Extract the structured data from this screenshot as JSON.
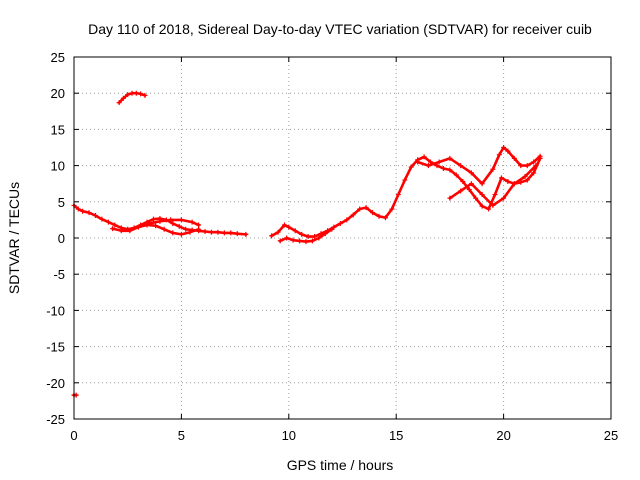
{
  "chart_data": {
    "type": "scatter",
    "title": "Day 110 of 2018, Sidereal Day-to-day VTEC variation (SDTVAR) for receiver cuib",
    "xlabel": "GPS time / hours",
    "ylabel": "SDTVAR / TECUs",
    "xlim": [
      0,
      25
    ],
    "ylim": [
      -25,
      25
    ],
    "xticks": [
      0,
      5,
      10,
      15,
      20,
      25
    ],
    "yticks": [
      -25,
      -20,
      -15,
      -10,
      -5,
      0,
      5,
      10,
      15,
      20,
      25
    ],
    "xtick_labels": [
      "0",
      "5",
      "10",
      "15",
      "20",
      "25"
    ],
    "ytick_labels": [
      "-25",
      "-20",
      "-15",
      "-10",
      "-5",
      "0",
      "5",
      "10",
      "15",
      "20",
      "25"
    ],
    "grid": true,
    "color": "#ff0000",
    "series": [
      {
        "name": "outlier",
        "x": [
          0.0,
          0.1
        ],
        "y": [
          -21.7,
          -21.7
        ]
      },
      {
        "name": "segment-a",
        "x": [
          0.0,
          0.2,
          0.4,
          0.7,
          1.0,
          1.3,
          1.6,
          1.9,
          2.2,
          2.5,
          2.8,
          3.1,
          3.4,
          3.7,
          4.0,
          4.3,
          4.6,
          4.9,
          5.2,
          5.5,
          5.8,
          6.1,
          6.4,
          6.7,
          7.0,
          7.3,
          7.6,
          8.0
        ],
        "y": [
          4.5,
          4.0,
          3.7,
          3.5,
          3.1,
          2.6,
          2.2,
          1.8,
          1.4,
          1.2,
          1.4,
          1.8,
          2.2,
          2.6,
          2.7,
          2.5,
          2.0,
          1.6,
          1.2,
          1.1,
          1.0,
          0.9,
          0.8,
          0.8,
          0.7,
          0.7,
          0.6,
          0.5
        ]
      },
      {
        "name": "segment-a-lower",
        "x": [
          1.8,
          2.2,
          2.6,
          3.0,
          3.4,
          3.8,
          4.2,
          4.6,
          5.0,
          5.4,
          5.8
        ],
        "y": [
          1.3,
          1.0,
          1.0,
          1.5,
          1.8,
          1.7,
          1.2,
          0.7,
          0.5,
          0.8,
          1.2
        ]
      },
      {
        "name": "segment-a-upper",
        "x": [
          3.5,
          4.0,
          4.5,
          5.0,
          5.5,
          5.8
        ],
        "y": [
          2.0,
          2.3,
          2.5,
          2.5,
          2.2,
          1.8
        ]
      },
      {
        "name": "early-arc",
        "x": [
          2.1,
          2.3,
          2.5,
          2.7,
          2.9,
          3.1,
          3.3
        ],
        "y": [
          18.7,
          19.3,
          19.8,
          20.0,
          20.0,
          19.9,
          19.7
        ]
      },
      {
        "name": "segment-b",
        "x": [
          9.2,
          9.5,
          9.8,
          10.0,
          10.3,
          10.6,
          10.9,
          11.2,
          11.5,
          11.8,
          12.1,
          12.4,
          12.7,
          13.0,
          13.3,
          13.6,
          13.9,
          14.2,
          14.5,
          14.8,
          15.1,
          15.4,
          15.7,
          16.0,
          16.3,
          16.6,
          16.9,
          17.2,
          17.5,
          17.8,
          18.1,
          18.4,
          18.7,
          19.0,
          19.3,
          19.6,
          19.9,
          20.2,
          20.5,
          20.8,
          21.1,
          21.4,
          21.7
        ],
        "y": [
          0.3,
          0.8,
          1.8,
          1.5,
          1.0,
          0.5,
          0.2,
          0.2,
          0.6,
          1.0,
          1.5,
          2.0,
          2.5,
          3.2,
          4.0,
          4.2,
          3.5,
          3.0,
          2.8,
          4.0,
          6.0,
          8.0,
          9.8,
          10.8,
          11.2,
          10.5,
          10.0,
          9.6,
          9.4,
          8.7,
          7.8,
          6.7,
          5.5,
          4.4,
          4.0,
          6.0,
          8.3,
          7.8,
          7.5,
          7.7,
          8.0,
          9.0,
          11.0
        ]
      },
      {
        "name": "segment-b-lower",
        "x": [
          9.6,
          9.9,
          10.2,
          10.5,
          10.8,
          11.1,
          11.4,
          11.7,
          12.0
        ],
        "y": [
          -0.4,
          0.0,
          -0.3,
          -0.4,
          -0.5,
          -0.4,
          0.0,
          0.6,
          1.2
        ]
      },
      {
        "name": "segment-c-upper",
        "x": [
          16.0,
          16.5,
          17.0,
          17.5,
          18.0,
          18.5,
          19.0,
          19.5,
          19.8,
          20.0,
          20.2,
          20.5,
          20.8,
          21.1,
          21.4,
          21.7
        ],
        "y": [
          10.5,
          10.0,
          10.5,
          11.0,
          10.0,
          9.0,
          7.5,
          9.5,
          11.5,
          12.5,
          12.0,
          11.0,
          10.0,
          10.0,
          10.5,
          11.3
        ]
      },
      {
        "name": "segment-c-lower",
        "x": [
          17.5,
          18.0,
          18.5,
          19.0,
          19.5,
          20.0,
          20.5,
          21.0,
          21.5
        ],
        "y": [
          5.5,
          6.5,
          7.5,
          6.0,
          4.5,
          5.5,
          7.5,
          8.5,
          10.0
        ]
      }
    ]
  }
}
